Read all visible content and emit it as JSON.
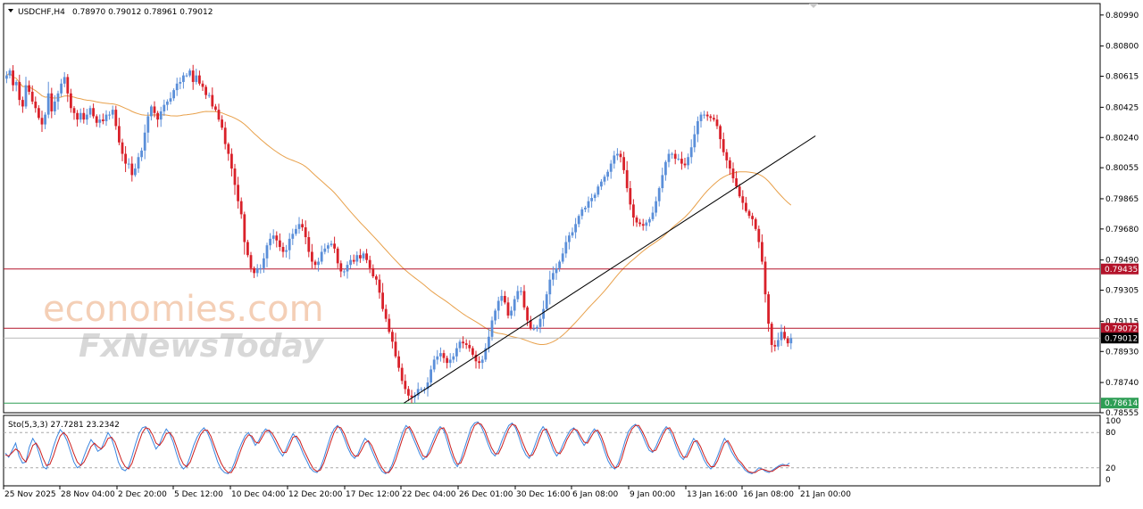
{
  "header": {
    "symbol": "USDCHF,H4",
    "ohlc": "0.78970 0.79012 0.78961 0.79012"
  },
  "watermark": {
    "brand": "economies.com",
    "brand2": "FxNewsToday"
  },
  "indicator": {
    "label": "Sto(5,3,3) 27.7281 23.2342",
    "levels": [
      "100",
      "80",
      "20",
      "0"
    ]
  },
  "colors": {
    "bull": "#5b8fd9",
    "bear": "#d9212a",
    "ma": "#e8a04a",
    "resistance": "#b3132a",
    "current": "#b9b9b9",
    "support": "#2e9e55",
    "trendline": "#000000",
    "stoch_main": "#3b86e0",
    "stoch_signal": "#cc1f1f"
  },
  "chart_data": {
    "type": "candlestick",
    "symbol": "USDCHF",
    "timeframe": "H4",
    "ylim": [
      0.78555,
      0.8106
    ],
    "y_ticks": [
      "0.80990",
      "0.80800",
      "0.80615",
      "0.80425",
      "0.80240",
      "0.80055",
      "0.79865",
      "0.79680",
      "0.79490",
      "0.79305",
      "0.79115",
      "0.78930",
      "0.78740",
      "0.78555"
    ],
    "x_ticks": [
      "25 Nov 2025",
      "28 Nov 04:00",
      "2 Dec 20:00",
      "5 Dec 12:00",
      "10 Dec 04:00",
      "12 Dec 20:00",
      "17 Dec 12:00",
      "22 Dec 04:00",
      "26 Dec 01:00",
      "30 Dec 16:00",
      "6 Jan 08:00",
      "9 Jan 00:00",
      "13 Jan 16:00",
      "16 Jan 08:00",
      "21 Jan 00:00"
    ],
    "price_lines": [
      {
        "value": 0.79435,
        "label": "0.79435",
        "kind": "resistance"
      },
      {
        "value": 0.79072,
        "label": "0.79072",
        "kind": "resistance"
      },
      {
        "value": 0.79012,
        "label": "0.79012",
        "kind": "current"
      },
      {
        "value": 0.78614,
        "label": "0.78614",
        "kind": "support"
      }
    ],
    "trendline": {
      "from_index": 124,
      "from_price": 0.78614,
      "to_index": 252,
      "to_price": 0.8025
    },
    "ma_period": 50,
    "close": [
      0.8062,
      0.8065,
      0.8056,
      0.8058,
      0.8047,
      0.8043,
      0.8056,
      0.8052,
      0.8046,
      0.8042,
      0.8036,
      0.8032,
      0.8038,
      0.8051,
      0.804,
      0.8046,
      0.8051,
      0.8057,
      0.8061,
      0.8051,
      0.8042,
      0.8039,
      0.8035,
      0.8039,
      0.8035,
      0.8038,
      0.8042,
      0.8037,
      0.8033,
      0.8035,
      0.8034,
      0.8038,
      0.8038,
      0.8041,
      0.8031,
      0.8021,
      0.8014,
      0.8008,
      0.8008,
      0.8001,
      0.8005,
      0.8012,
      0.8016,
      0.8027,
      0.8037,
      0.8043,
      0.8039,
      0.8035,
      0.804,
      0.8044,
      0.8046,
      0.8048,
      0.8053,
      0.8057,
      0.8058,
      0.8062,
      0.8062,
      0.8065,
      0.8058,
      0.8062,
      0.8057,
      0.8055,
      0.805,
      0.805,
      0.8043,
      0.8041,
      0.8035,
      0.803,
      0.802,
      0.8014,
      0.8005,
      0.7995,
      0.7985,
      0.7977,
      0.796,
      0.7952,
      0.7944,
      0.7941,
      0.7944,
      0.7944,
      0.795,
      0.7958,
      0.7962,
      0.7964,
      0.7961,
      0.7957,
      0.7954,
      0.7955,
      0.7962,
      0.7965,
      0.7968,
      0.7971,
      0.7969,
      0.7963,
      0.7954,
      0.7948,
      0.7946,
      0.7948,
      0.7954,
      0.7956,
      0.7958,
      0.7959,
      0.7956,
      0.7947,
      0.7942,
      0.7942,
      0.7946,
      0.7949,
      0.7948,
      0.7952,
      0.795,
      0.7953,
      0.7949,
      0.7944,
      0.7939,
      0.7937,
      0.7929,
      0.7919,
      0.7913,
      0.7905,
      0.7899,
      0.789,
      0.7883,
      0.7875,
      0.787,
      0.7866,
      0.7865,
      0.7866,
      0.787,
      0.787,
      0.787,
      0.7874,
      0.7882,
      0.7888,
      0.789,
      0.7892,
      0.7889,
      0.7886,
      0.7888,
      0.789,
      0.7895,
      0.7899,
      0.7898,
      0.7897,
      0.7895,
      0.7891,
      0.7887,
      0.7886,
      0.7888,
      0.7895,
      0.7902,
      0.7912,
      0.7918,
      0.7924,
      0.7927,
      0.7923,
      0.7915,
      0.7918,
      0.7925,
      0.793,
      0.793,
      0.792,
      0.7912,
      0.7907,
      0.7907,
      0.7908,
      0.7913,
      0.7919,
      0.7928,
      0.7937,
      0.7941,
      0.7944,
      0.7948,
      0.7953,
      0.796,
      0.7964,
      0.7966,
      0.7971,
      0.7976,
      0.798,
      0.7981,
      0.7985,
      0.7987,
      0.7989,
      0.7994,
      0.7997,
      0.8,
      0.8003,
      0.8008,
      0.8013,
      0.8014,
      0.8012,
      0.8004,
      0.7993,
      0.7983,
      0.7975,
      0.7972,
      0.7971,
      0.797,
      0.7972,
      0.7974,
      0.7978,
      0.7985,
      0.7993,
      0.8001,
      0.8009,
      0.8014,
      0.8014,
      0.8011,
      0.8011,
      0.8008,
      0.8007,
      0.8012,
      0.8018,
      0.8026,
      0.8034,
      0.8038,
      0.8038,
      0.8037,
      0.8036,
      0.8035,
      0.8031,
      0.8023,
      0.8015,
      0.801,
      0.8005,
      0.7999,
      0.7994,
      0.7988,
      0.7984,
      0.7979,
      0.7976,
      0.7974,
      0.7968,
      0.796,
      0.7948,
      0.7928,
      0.791,
      0.7897,
      0.7896,
      0.79,
      0.7905,
      0.7901,
      0.7898,
      0.79012
    ],
    "stochastic": {
      "name": "Sto(5,3,3)",
      "main_last": 27.7281,
      "signal_last": 23.2342,
      "levels": [
        20,
        80
      ],
      "main": [
        45,
        38,
        50,
        62,
        40,
        28,
        30,
        55,
        70,
        60,
        42,
        22,
        18,
        35,
        55,
        72,
        85,
        78,
        66,
        48,
        30,
        20,
        24,
        40,
        55,
        68,
        60,
        48,
        52,
        66,
        80,
        70,
        52,
        30,
        18,
        15,
        22,
        40,
        60,
        78,
        88,
        90,
        80,
        66,
        52,
        60,
        75,
        86,
        78,
        64,
        44,
        26,
        18,
        24,
        40,
        58,
        72,
        82,
        88,
        80,
        66,
        48,
        30,
        18,
        12,
        10,
        16,
        30,
        48,
        62,
        74,
        80,
        70,
        58,
        66,
        78,
        86,
        82,
        72,
        60,
        48,
        40,
        52,
        66,
        78,
        70,
        58,
        44,
        32,
        20,
        14,
        12,
        20,
        36,
        56,
        74,
        86,
        92,
        84,
        70,
        54,
        42,
        36,
        44,
        58,
        70,
        64,
        50,
        36,
        24,
        14,
        10,
        14,
        26,
        44,
        62,
        80,
        92,
        86,
        72,
        58,
        44,
        34,
        40,
        54,
        68,
        82,
        90,
        84,
        66,
        46,
        30,
        22,
        34,
        52,
        70,
        88,
        96,
        98,
        90,
        76,
        60,
        46,
        40,
        50,
        66,
        80,
        92,
        96,
        88,
        72,
        54,
        42,
        36,
        48,
        64,
        80,
        90,
        82,
        66,
        50,
        40,
        48,
        62,
        74,
        84,
        88,
        80,
        68,
        58,
        66,
        78,
        86,
        80,
        66,
        48,
        32,
        22,
        18,
        28,
        46,
        66,
        82,
        90,
        94,
        88,
        76,
        62,
        50,
        46,
        56,
        70,
        82,
        90,
        84,
        70,
        54,
        40,
        34,
        44,
        58,
        70,
        62,
        48,
        34,
        24,
        18,
        26,
        40,
        56,
        70,
        62,
        48,
        38,
        30,
        24,
        16,
        12,
        10,
        14,
        20,
        18,
        14,
        12,
        16,
        20,
        24,
        26,
        24,
        28
      ],
      "signal": [
        42,
        40,
        46,
        52,
        48,
        36,
        30,
        42,
        58,
        62,
        52,
        36,
        24,
        26,
        40,
        58,
        74,
        80,
        74,
        60,
        44,
        30,
        24,
        30,
        42,
        56,
        62,
        56,
        52,
        58,
        70,
        72,
        64,
        48,
        32,
        22,
        18,
        28,
        46,
        64,
        80,
        88,
        86,
        76,
        62,
        58,
        66,
        78,
        80,
        72,
        56,
        38,
        26,
        22,
        30,
        46,
        62,
        76,
        84,
        84,
        74,
        58,
        42,
        28,
        18,
        12,
        12,
        22,
        38,
        54,
        68,
        76,
        74,
        64,
        62,
        72,
        82,
        84,
        78,
        68,
        56,
        46,
        46,
        58,
        72,
        74,
        66,
        52,
        40,
        28,
        18,
        14,
        16,
        28,
        46,
        64,
        80,
        90,
        88,
        78,
        62,
        48,
        40,
        40,
        50,
        62,
        66,
        58,
        44,
        30,
        20,
        12,
        12,
        20,
        34,
        52,
        70,
        86,
        90,
        80,
        66,
        52,
        40,
        38,
        46,
        60,
        74,
        86,
        88,
        76,
        56,
        38,
        26,
        28,
        42,
        60,
        78,
        92,
        96,
        94,
        84,
        68,
        54,
        44,
        44,
        56,
        72,
        86,
        94,
        92,
        80,
        64,
        50,
        40,
        42,
        54,
        70,
        84,
        86,
        74,
        58,
        46,
        44,
        54,
        68,
        78,
        86,
        84,
        74,
        64,
        62,
        72,
        82,
        84,
        74,
        58,
        40,
        28,
        20,
        22,
        36,
        56,
        74,
        86,
        92,
        92,
        82,
        70,
        56,
        48,
        50,
        62,
        76,
        86,
        88,
        78,
        62,
        48,
        38,
        38,
        50,
        64,
        66,
        56,
        42,
        30,
        22,
        22,
        32,
        48,
        62,
        66,
        56,
        44,
        34,
        28,
        20,
        14,
        12,
        12,
        16,
        18,
        16,
        14,
        14,
        18,
        22,
        24,
        24,
        23
      ]
    }
  }
}
